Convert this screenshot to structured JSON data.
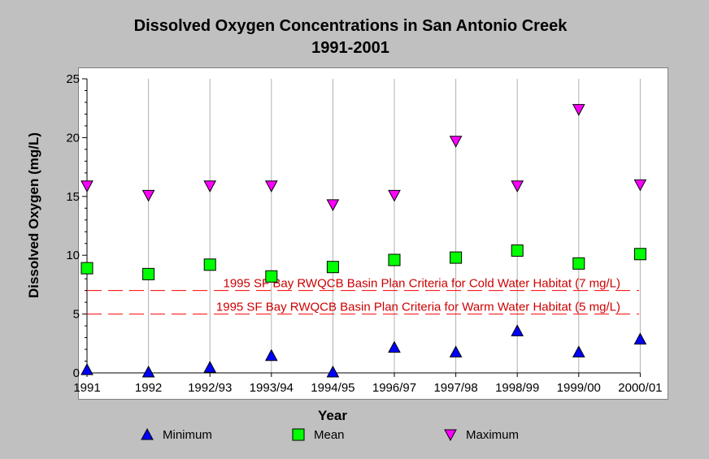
{
  "chart_data": {
    "type": "scatter",
    "title": [
      "Dissolved Oxygen Concentrations in San Antonio Creek",
      "1991-2001"
    ],
    "xlabel": "Year",
    "ylabel": "Dissolved Oxygen (mg/L)",
    "categories": [
      "1991",
      "1992",
      "1992/93",
      "1993/94",
      "1994/95",
      "1996/97",
      "1997/98",
      "1998/99",
      "1999/00",
      "2000/01"
    ],
    "ylim": [
      0,
      25
    ],
    "yticks": [
      "0",
      "5",
      "10",
      "15",
      "20",
      "25"
    ],
    "grid": "vertical",
    "legend_position": "bottom",
    "series": [
      {
        "name": "Minimum",
        "marker": "triangle-up",
        "color": "#0000ff",
        "values": [
          0.2,
          0.0,
          0.4,
          1.4,
          0.0,
          2.1,
          1.7,
          3.5,
          1.7,
          2.8
        ]
      },
      {
        "name": "Mean",
        "marker": "square",
        "color": "#00ff00",
        "values": [
          8.9,
          8.4,
          9.2,
          8.2,
          9.0,
          9.6,
          9.8,
          10.4,
          9.3,
          10.1
        ]
      },
      {
        "name": "Maximum",
        "marker": "triangle-down",
        "color": "#ff00ff",
        "values": [
          15.9,
          15.1,
          15.9,
          15.9,
          14.3,
          15.1,
          19.7,
          15.9,
          22.4,
          16.0
        ]
      }
    ],
    "reference_lines": [
      {
        "value": 7,
        "label": "1995 SF Bay RWQCB Basin Plan Criteria for Cold Water Habitat (7 mg/L)",
        "color": "#ff0000",
        "style": "dashed"
      },
      {
        "value": 5,
        "label": "1995 SF Bay RWQCB Basin Plan Criteria for Warm Water Habitat (5 mg/L)",
        "color": "#ff0000",
        "style": "dashed"
      }
    ]
  }
}
